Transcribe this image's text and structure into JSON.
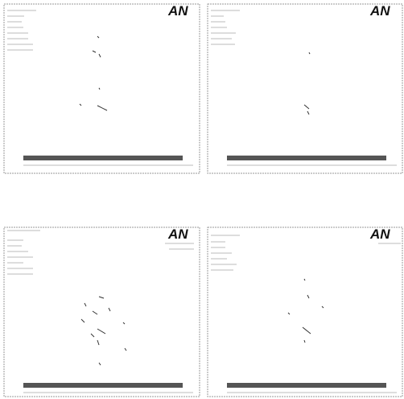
{
  "panels": [
    {
      "logo": "AN"
    },
    {
      "logo": "AN"
    },
    {
      "logo": "AN"
    },
    {
      "logo": "AN"
    }
  ]
}
